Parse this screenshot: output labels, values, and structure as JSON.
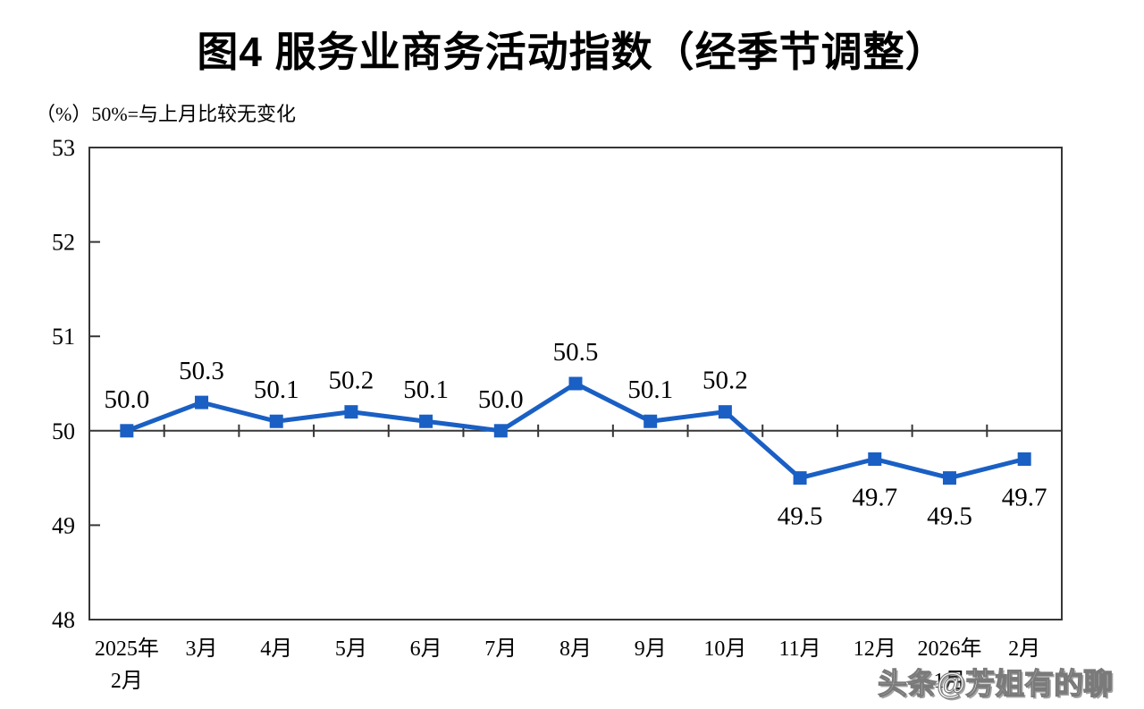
{
  "header": {
    "title": "图4  服务业商务活动指数（经季节调整）",
    "subtitle": "（%）50%=与上月比较无变化"
  },
  "watermark": {
    "text": "头条@芳姐有的聊"
  },
  "chart_data": {
    "type": "line",
    "title": "图4  服务业商务活动指数（经季节调整）",
    "ylabel_note": "（%）50%=与上月比较无变化",
    "categories": [
      [
        "2025年",
        "2月"
      ],
      [
        "3月"
      ],
      [
        "4月"
      ],
      [
        "5月"
      ],
      [
        "6月"
      ],
      [
        "7月"
      ],
      [
        "8月"
      ],
      [
        "9月"
      ],
      [
        "10月"
      ],
      [
        "11月"
      ],
      [
        "12月"
      ],
      [
        "2026年",
        "1月"
      ],
      [
        "2月"
      ]
    ],
    "values": [
      50.0,
      50.3,
      50.1,
      50.2,
      50.1,
      50.0,
      50.5,
      50.1,
      50.2,
      49.5,
      49.7,
      49.5,
      49.7
    ],
    "data_labels": [
      "50.0",
      "50.3",
      "50.1",
      "50.2",
      "50.1",
      "50.0",
      "50.5",
      "50.1",
      "50.2",
      "49.5",
      "49.7",
      "49.5",
      "49.7"
    ],
    "ylim": [
      48,
      53
    ],
    "yticks": [
      48,
      49,
      50,
      51,
      52,
      53
    ],
    "reference_line": 50,
    "grid": false,
    "legend": "none",
    "colors": {
      "line": "#1A5FC4",
      "marker": "#1A5FC4",
      "axis": "#363636",
      "text": "#000000"
    }
  }
}
